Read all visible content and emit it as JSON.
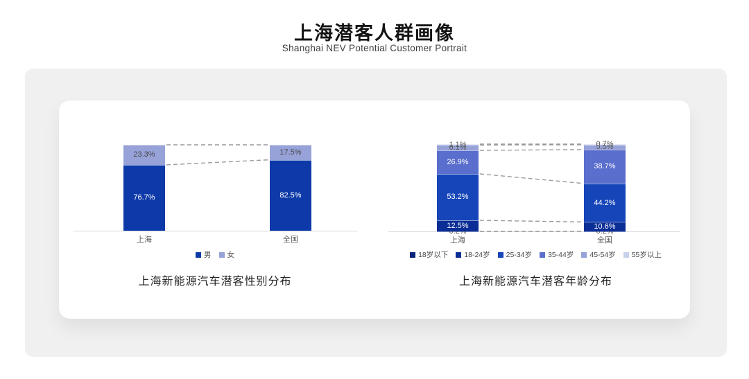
{
  "page": {
    "title": "上海潜客人群画像",
    "subtitle": "Shanghai NEV Potential Customer Portrait"
  },
  "colors": {
    "panel_gray": "#f0f0f1",
    "card_white": "#ffffff",
    "axis": "#d8d8d8",
    "dash_line": "#999999",
    "tick_text": "#595959"
  },
  "chart_data": [
    {
      "type": "bar",
      "variant": "stacked-percent",
      "caption": "上海新能源汽车潜客性别分布",
      "categories": [
        "上海",
        "全国"
      ],
      "series": [
        {
          "name": "男",
          "values": [
            76.7,
            82.5
          ],
          "color": "#0d3aa8",
          "label_color": "#ffffff"
        },
        {
          "name": "女",
          "values": [
            23.3,
            17.5
          ],
          "color": "#96a2d8",
          "label_color": "#474747"
        }
      ],
      "ylim": [
        0,
        100
      ],
      "grid": false,
      "legend_position": "bottom",
      "annotations": "dashed connector lines between segment boundaries of the two bars"
    },
    {
      "type": "bar",
      "variant": "stacked-percent",
      "caption": "上海新能源汽车潜客年龄分布",
      "categories": [
        "上海",
        "全国"
      ],
      "series": [
        {
          "name": "18岁以下",
          "values": [
            0.2,
            0.2
          ],
          "color": "#07227a",
          "label_color": "#5a5a5a"
        },
        {
          "name": "18-24岁",
          "values": [
            12.5,
            10.6
          ],
          "color": "#0b2d96",
          "label_color": "#ffffff"
        },
        {
          "name": "25-34岁",
          "values": [
            53.2,
            44.2
          ],
          "color": "#1545b8",
          "label_color": "#ffffff"
        },
        {
          "name": "35-44岁",
          "values": [
            26.9,
            38.7
          ],
          "color": "#5a6ecd",
          "label_color": "#ffffff"
        },
        {
          "name": "45-54岁",
          "values": [
            6.1,
            5.5
          ],
          "color": "#96a2d8",
          "label_color": "#5a5a5a"
        },
        {
          "name": "55岁以上",
          "values": [
            1.1,
            0.7
          ],
          "color": "#c9d0ec",
          "label_color": "#5a5a5a"
        }
      ],
      "ylim": [
        0,
        100
      ],
      "grid": false,
      "legend_position": "bottom",
      "annotations": "dashed connector lines between segment boundaries of the two bars"
    }
  ]
}
